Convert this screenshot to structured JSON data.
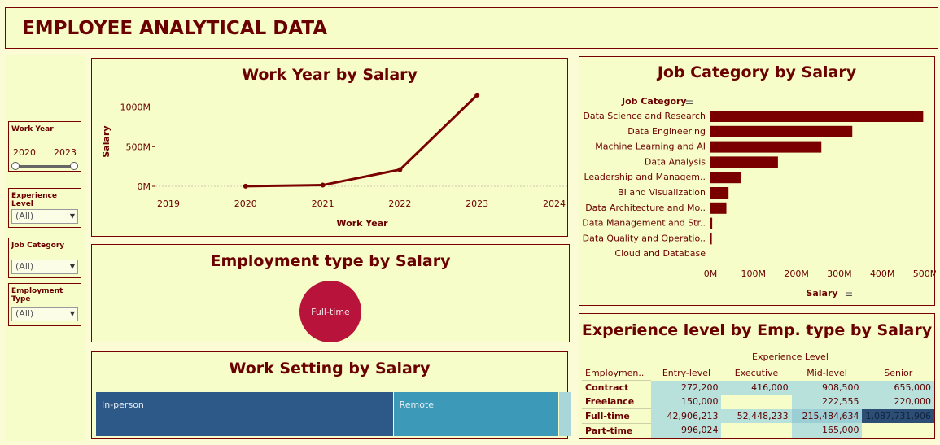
{
  "header": {
    "title": "EMPLOYEE ANALYTICAL DATA"
  },
  "filters": {
    "work_year": {
      "label": "Work Year",
      "min": "2020",
      "max": "2023"
    },
    "experience_level": {
      "label": "Experience Level",
      "value": "(All)"
    },
    "job_category": {
      "label": "Job Category",
      "value": "(All)"
    },
    "employment_type": {
      "label": "Employment Type",
      "value": "(All)"
    }
  },
  "work_year_chart": {
    "title": "Work Year by Salary"
  },
  "employment_chart": {
    "title": "Employment type by Salary"
  },
  "work_setting_chart": {
    "title": "Work Setting by Salary"
  },
  "job_category_chart": {
    "title": "Job Category by Salary"
  },
  "experience_table": {
    "title": "Experience level by Emp. type by Salary",
    "col_header": "Experience Level",
    "row_header": "Employmen..",
    "columns": [
      "Entry-level",
      "Executive",
      "Mid-level",
      "Senior"
    ],
    "rows": [
      {
        "name": "Contract",
        "values": [
          "272,200",
          "416,000",
          "908,500",
          "655,000"
        ]
      },
      {
        "name": "Freelance",
        "values": [
          "150,000",
          "",
          "222,555",
          "220,000"
        ]
      },
      {
        "name": "Full-time",
        "values": [
          "42,906,213",
          "52,448,233",
          "215,484,634",
          "1,087,731,906"
        ]
      },
      {
        "name": "Part-time",
        "values": [
          "996,024",
          "",
          "165,000",
          ""
        ]
      }
    ]
  },
  "chart_data": [
    {
      "type": "line",
      "title": "Work Year by Salary",
      "xlabel": "Work Year",
      "ylabel": "Salary",
      "x": [
        2020,
        2021,
        2022,
        2023
      ],
      "values": [
        1,
        15,
        210,
        1150
      ],
      "x_ticks": [
        "2019",
        "2020",
        "2021",
        "2022",
        "2023",
        "2024"
      ],
      "y_ticks": [
        "0M",
        "500M",
        "1000M"
      ],
      "ylim": [
        0,
        1200
      ],
      "xlim": [
        2019,
        2024
      ],
      "color": "#7a0000"
    },
    {
      "type": "pie",
      "title": "Employment type by Salary",
      "categories": [
        "Full-time"
      ],
      "values": [
        100
      ],
      "color": "#b8133a"
    },
    {
      "type": "bar",
      "title": "Work Setting by Salary",
      "categories": [
        "In-person",
        "Remote",
        ""
      ],
      "values": [
        365,
        203,
        6
      ],
      "colors": [
        "#2c5987",
        "#3c9ab8",
        "#a9d6d9"
      ]
    },
    {
      "type": "bar",
      "orientation": "horizontal",
      "title": "Job Category by Salary",
      "ylabel": "Job Category",
      "xlabel": "Salary",
      "categories": [
        "Data Science and Research",
        "Data Engineering",
        "Machine Learning and AI",
        "Data Analysis",
        "Leadership and Managem..",
        "BI and Visualization",
        "Data Architecture and Mo..",
        "Data Management and Str..",
        "Data Quality and Operatio..",
        "Cloud and Database"
      ],
      "values": [
        495,
        330,
        258,
        157,
        72,
        42,
        37,
        4,
        3,
        0
      ],
      "x_ticks": [
        "0M",
        "100M",
        "200M",
        "300M",
        "400M",
        "500M"
      ],
      "xlim": [
        0,
        500
      ],
      "color": "#7a0000"
    },
    {
      "type": "heatmap",
      "title": "Experience level by Emp. type by Salary",
      "columns": [
        "Entry-level",
        "Executive",
        "Mid-level",
        "Senior"
      ],
      "rows": [
        "Contract",
        "Freelance",
        "Full-time",
        "Part-time"
      ],
      "values": [
        [
          272200,
          416000,
          908500,
          655000
        ],
        [
          150000,
          null,
          222555,
          220000
        ],
        [
          42906213,
          52448233,
          215484634,
          1087731906
        ],
        [
          996024,
          null,
          165000,
          null
        ]
      ]
    }
  ]
}
